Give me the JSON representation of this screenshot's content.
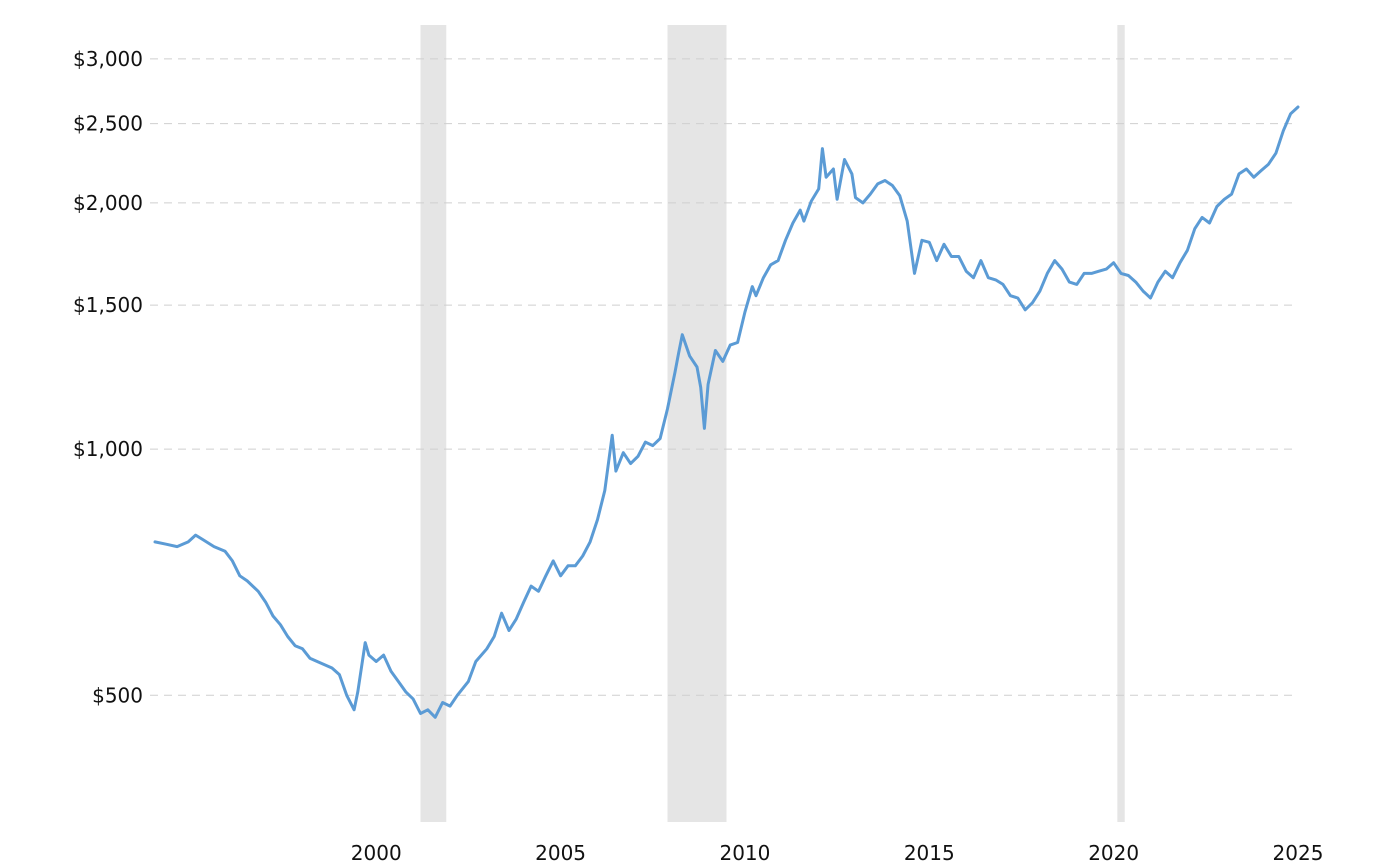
{
  "chart_data": {
    "type": "line",
    "title": "",
    "xlabel": "",
    "ylabel": "",
    "y_scale": "log",
    "ylim": [
      350,
      3300
    ],
    "xlim": [
      1994.0,
      2025.0
    ],
    "grid": "horizontal dashed",
    "legend": "none",
    "colors": {
      "line": "#5b9bd5",
      "recession": "#e5e5e5",
      "grid": "#cfcfcf"
    },
    "y_ticks": [
      {
        "value": 500,
        "label": "$500"
      },
      {
        "value": 1000,
        "label": "$1,000"
      },
      {
        "value": 1500,
        "label": "$1,500"
      },
      {
        "value": 2000,
        "label": "$2,000"
      },
      {
        "value": 2500,
        "label": "$2,500"
      },
      {
        "value": 3000,
        "label": "$3,000"
      }
    ],
    "x_ticks": [
      {
        "value": 2000,
        "label": "2000"
      },
      {
        "value": 2005,
        "label": "2005"
      },
      {
        "value": 2010,
        "label": "2010"
      },
      {
        "value": 2015,
        "label": "2015"
      },
      {
        "value": 2020,
        "label": "2020"
      },
      {
        "value": 2025,
        "label": "2025"
      }
    ],
    "recessions": [
      {
        "start": 2001.2,
        "end": 2001.9
      },
      {
        "start": 2007.9,
        "end": 2009.5
      },
      {
        "start": 2020.1,
        "end": 2020.3
      }
    ],
    "series": [
      {
        "points": [
          [
            1994.0,
            770
          ],
          [
            1994.3,
            765
          ],
          [
            1994.6,
            760
          ],
          [
            1994.9,
            770
          ],
          [
            1995.1,
            785
          ],
          [
            1995.3,
            775
          ],
          [
            1995.6,
            760
          ],
          [
            1995.9,
            750
          ],
          [
            1996.1,
            730
          ],
          [
            1996.3,
            700
          ],
          [
            1996.5,
            690
          ],
          [
            1996.8,
            670
          ],
          [
            1997.0,
            650
          ],
          [
            1997.2,
            625
          ],
          [
            1997.4,
            610
          ],
          [
            1997.6,
            590
          ],
          [
            1997.8,
            575
          ],
          [
            1998.0,
            570
          ],
          [
            1998.2,
            555
          ],
          [
            1998.4,
            550
          ],
          [
            1998.6,
            545
          ],
          [
            1998.8,
            540
          ],
          [
            1999.0,
            530
          ],
          [
            1999.2,
            500
          ],
          [
            1999.4,
            480
          ],
          [
            1999.5,
            505
          ],
          [
            1999.7,
            580
          ],
          [
            1999.8,
            560
          ],
          [
            2000.0,
            550
          ],
          [
            2000.2,
            560
          ],
          [
            2000.4,
            535
          ],
          [
            2000.6,
            520
          ],
          [
            2000.8,
            505
          ],
          [
            2001.0,
            495
          ],
          [
            2001.2,
            475
          ],
          [
            2001.4,
            480
          ],
          [
            2001.6,
            470
          ],
          [
            2001.8,
            490
          ],
          [
            2002.0,
            485
          ],
          [
            2002.2,
            500
          ],
          [
            2002.5,
            520
          ],
          [
            2002.7,
            550
          ],
          [
            2003.0,
            570
          ],
          [
            2003.2,
            590
          ],
          [
            2003.4,
            630
          ],
          [
            2003.6,
            600
          ],
          [
            2003.8,
            620
          ],
          [
            2004.0,
            650
          ],
          [
            2004.2,
            680
          ],
          [
            2004.4,
            670
          ],
          [
            2004.6,
            700
          ],
          [
            2004.8,
            730
          ],
          [
            2005.0,
            700
          ],
          [
            2005.2,
            720
          ],
          [
            2005.4,
            720
          ],
          [
            2005.6,
            740
          ],
          [
            2005.8,
            770
          ],
          [
            2006.0,
            820
          ],
          [
            2006.2,
            890
          ],
          [
            2006.4,
            1040
          ],
          [
            2006.5,
            940
          ],
          [
            2006.7,
            990
          ],
          [
            2006.9,
            960
          ],
          [
            2007.1,
            980
          ],
          [
            2007.3,
            1020
          ],
          [
            2007.5,
            1010
          ],
          [
            2007.7,
            1030
          ],
          [
            2007.9,
            1120
          ],
          [
            2008.1,
            1240
          ],
          [
            2008.2,
            1310
          ],
          [
            2008.3,
            1380
          ],
          [
            2008.5,
            1300
          ],
          [
            2008.7,
            1260
          ],
          [
            2008.8,
            1190
          ],
          [
            2008.9,
            1060
          ],
          [
            2009.0,
            1200
          ],
          [
            2009.2,
            1320
          ],
          [
            2009.4,
            1280
          ],
          [
            2009.6,
            1340
          ],
          [
            2009.8,
            1350
          ],
          [
            2010.0,
            1470
          ],
          [
            2010.2,
            1580
          ],
          [
            2010.3,
            1540
          ],
          [
            2010.5,
            1620
          ],
          [
            2010.7,
            1680
          ],
          [
            2010.9,
            1700
          ],
          [
            2011.1,
            1800
          ],
          [
            2011.3,
            1890
          ],
          [
            2011.5,
            1960
          ],
          [
            2011.6,
            1900
          ],
          [
            2011.8,
            2010
          ],
          [
            2012.0,
            2080
          ],
          [
            2012.1,
            2330
          ],
          [
            2012.2,
            2150
          ],
          [
            2012.4,
            2200
          ],
          [
            2012.5,
            2020
          ],
          [
            2012.7,
            2260
          ],
          [
            2012.9,
            2170
          ],
          [
            2013.0,
            2030
          ],
          [
            2013.2,
            2000
          ],
          [
            2013.4,
            2050
          ],
          [
            2013.6,
            2110
          ],
          [
            2013.8,
            2130
          ],
          [
            2014.0,
            2100
          ],
          [
            2014.2,
            2040
          ],
          [
            2014.4,
            1900
          ],
          [
            2014.6,
            1640
          ],
          [
            2014.8,
            1800
          ],
          [
            2015.0,
            1790
          ],
          [
            2015.2,
            1700
          ],
          [
            2015.4,
            1780
          ],
          [
            2015.6,
            1720
          ],
          [
            2015.8,
            1720
          ],
          [
            2016.0,
            1650
          ],
          [
            2016.2,
            1620
          ],
          [
            2016.4,
            1700
          ],
          [
            2016.6,
            1620
          ],
          [
            2016.8,
            1610
          ],
          [
            2017.0,
            1590
          ],
          [
            2017.2,
            1540
          ],
          [
            2017.4,
            1530
          ],
          [
            2017.6,
            1480
          ],
          [
            2017.8,
            1510
          ],
          [
            2018.0,
            1560
          ],
          [
            2018.2,
            1640
          ],
          [
            2018.4,
            1700
          ],
          [
            2018.6,
            1660
          ],
          [
            2018.8,
            1600
          ],
          [
            2019.0,
            1590
          ],
          [
            2019.2,
            1640
          ],
          [
            2019.4,
            1640
          ],
          [
            2019.6,
            1650
          ],
          [
            2019.8,
            1660
          ],
          [
            2020.0,
            1690
          ],
          [
            2020.2,
            1640
          ],
          [
            2020.4,
            1630
          ],
          [
            2020.6,
            1600
          ],
          [
            2020.8,
            1560
          ],
          [
            2021.0,
            1530
          ],
          [
            2021.2,
            1600
          ],
          [
            2021.4,
            1650
          ],
          [
            2021.6,
            1620
          ],
          [
            2021.8,
            1690
          ],
          [
            2022.0,
            1750
          ],
          [
            2022.2,
            1860
          ],
          [
            2022.4,
            1920
          ],
          [
            2022.6,
            1890
          ],
          [
            2022.8,
            1980
          ],
          [
            2023.0,
            2020
          ],
          [
            2023.2,
            2050
          ],
          [
            2023.4,
            2170
          ],
          [
            2023.6,
            2200
          ],
          [
            2023.8,
            2150
          ],
          [
            2024.0,
            2190
          ],
          [
            2024.2,
            2230
          ],
          [
            2024.4,
            2300
          ],
          [
            2024.6,
            2450
          ],
          [
            2024.8,
            2570
          ],
          [
            2025.0,
            2620
          ]
        ]
      }
    ]
  }
}
